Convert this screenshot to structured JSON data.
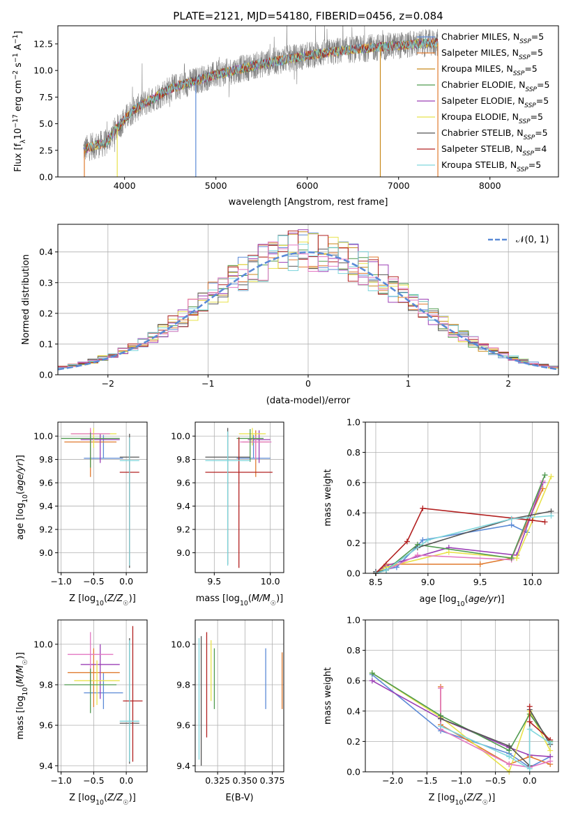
{
  "chart_data": [
    {
      "type": "line",
      "title": "PLATE=2121, MJD=54180, FIBERID=0456, z=0.084",
      "xlabel": "wavelength [Angstrom, rest frame]",
      "ylabel": "Flux [f_λ 10⁻¹⁷ erg cm⁻² s⁻¹ A⁻¹]",
      "xlim": [
        3270,
        8750
      ],
      "ylim": [
        0,
        14.2
      ],
      "xticks": [
        4000,
        5000,
        6000,
        7000,
        8000
      ],
      "yticks": [
        0.0,
        2.5,
        5.0,
        7.5,
        10.0,
        12.5
      ],
      "grid": false,
      "legend_position": "top-right",
      "series": [
        {
          "name": "Chabrier MILES, N_SSP=5",
          "color": "#5b8ad6"
        },
        {
          "name": "Salpeter MILES, N_SSP=5",
          "color": "#e07a2e"
        },
        {
          "name": "Kroupa MILES, N_SSP=5",
          "color": "#c8891b"
        },
        {
          "name": "Chabrier ELODIE, N_SSP=5",
          "color": "#4f9a4f"
        },
        {
          "name": "Salpeter ELODIE, N_SSP=5",
          "color": "#9b3fb5"
        },
        {
          "name": "Kroupa ELODIE, N_SSP=5",
          "color": "#e8e24a"
        },
        {
          "name": "Chabrier STELIB, N_SSP=5",
          "color": "#555555"
        },
        {
          "name": "Salpeter STELIB, N_SSP=4",
          "color": "#b22020"
        },
        {
          "name": "Kroupa STELIB, N_SSP=5",
          "color": "#7fd6dc"
        }
      ],
      "data_series_color": "#808080",
      "continuum": [
        [
          3550,
          2.6
        ],
        [
          3700,
          3.0
        ],
        [
          3800,
          3.2
        ],
        [
          3900,
          4.4
        ],
        [
          4000,
          5.4
        ],
        [
          4100,
          6.3
        ],
        [
          4300,
          7.3
        ],
        [
          4500,
          8.3
        ],
        [
          4800,
          9.1
        ],
        [
          5000,
          9.6
        ],
        [
          5300,
          10.2
        ],
        [
          5600,
          10.8
        ],
        [
          6000,
          11.4
        ],
        [
          6400,
          11.9
        ],
        [
          6800,
          12.2
        ],
        [
          7200,
          12.5
        ],
        [
          7430,
          12.6
        ]
      ]
    },
    {
      "type": "line",
      "xlabel": "(data-model)/error",
      "ylabel": "Normed distribution",
      "xlim": [
        -2.5,
        2.5
      ],
      "ylim": [
        0,
        0.49
      ],
      "xticks": [
        -2,
        -1,
        0,
        1,
        2
      ],
      "yticks": [
        0.0,
        0.1,
        0.2,
        0.3,
        0.4
      ],
      "grid": true,
      "legend_position": "top-right",
      "legend": [
        "𝒩(0, 1)"
      ],
      "gauss_color": "#5b8ad6"
    },
    {
      "type": "scatter",
      "xlabel": "Z [log₁₀(Z/Z☉)]",
      "ylabel": "age  [log₁₀(age/yr)]",
      "xlim": [
        -1.05,
        0.32
      ],
      "ylim": [
        8.83,
        10.12
      ],
      "xticks": [
        -1.0,
        -0.5,
        0.0
      ],
      "yticks": [
        9.0,
        9.2,
        9.4,
        9.6,
        9.8,
        10.0
      ],
      "grid": true,
      "points": [
        {
          "x": -0.35,
          "y": 9.81,
          "xerr": 0.3,
          "yerr": [
            0.0,
            0.2
          ],
          "color": "#5b8ad6"
        },
        {
          "x": -0.55,
          "y": 9.95,
          "xerr": 0.4,
          "yerr": [
            0.3,
            0.1
          ],
          "color": "#e07a2e"
        },
        {
          "x": -0.4,
          "y": 9.97,
          "xerr": 0.3,
          "yerr": [
            0.2,
            0.05
          ],
          "color": "#9b3fb5"
        },
        {
          "x": -0.5,
          "y": 10.02,
          "xerr": 0.35,
          "yerr": [
            0.12,
            0.05
          ],
          "color": "#e8e24a"
        },
        {
          "x": -0.55,
          "y": 10.02,
          "xerr": 0.3,
          "yerr": [
            0.2,
            0.05
          ],
          "color": "#e377c2"
        },
        {
          "x": -0.55,
          "y": 9.98,
          "xerr": 0.45,
          "yerr": [
            0.25,
            0.05
          ],
          "color": "#4f9a4f"
        },
        {
          "x": 0.05,
          "y": 9.82,
          "xerr": 0.15,
          "yerr": [
            0.95,
            0.2
          ],
          "color": "#555555"
        },
        {
          "x": 0.05,
          "y": 9.69,
          "xerr": 0.15,
          "yerr": [
            0.8,
            0.3
          ],
          "color": "#b22020"
        },
        {
          "x": 0.05,
          "y": 9.79,
          "xerr": 0.15,
          "yerr": [
            0.9,
            0.2
          ],
          "color": "#7fd6dc"
        }
      ]
    },
    {
      "type": "scatter",
      "xlabel": "mass [log₁₀(M/M☉)]",
      "xlim": [
        9.33,
        10.12
      ],
      "ylim": [
        8.83,
        10.12
      ],
      "xticks": [
        9.5,
        10.0
      ],
      "yticks": [
        9.0,
        9.2,
        9.4,
        9.6,
        9.8,
        10.0
      ],
      "grid": true,
      "points": [
        {
          "x": 9.85,
          "y": 9.81,
          "xerr": 0.15,
          "yerr": [
            0.0,
            0.2
          ],
          "color": "#5b8ad6"
        },
        {
          "x": 9.87,
          "y": 9.95,
          "xerr": 0.12,
          "yerr": [
            0.3,
            0.1
          ],
          "color": "#e07a2e"
        },
        {
          "x": 9.9,
          "y": 9.97,
          "xerr": 0.1,
          "yerr": [
            0.2,
            0.08
          ],
          "color": "#9b3fb5"
        },
        {
          "x": 9.84,
          "y": 10.02,
          "xerr": 0.12,
          "yerr": [
            0.1,
            0.05
          ],
          "color": "#e8e24a"
        },
        {
          "x": 9.87,
          "y": 9.95,
          "xerr": 0.14,
          "yerr": [
            0.15,
            0.05
          ],
          "color": "#e377c2"
        },
        {
          "x": 9.82,
          "y": 9.98,
          "xerr": 0.12,
          "yerr": [
            0.2,
            0.08
          ],
          "color": "#4f9a4f"
        },
        {
          "x": 9.62,
          "y": 9.82,
          "xerr": 0.2,
          "yerr": [
            0.92,
            0.25
          ],
          "color": "#555555"
        },
        {
          "x": 9.72,
          "y": 9.69,
          "xerr": 0.3,
          "yerr": [
            0.82,
            0.3
          ],
          "color": "#b22020"
        },
        {
          "x": 9.62,
          "y": 9.79,
          "xerr": 0.2,
          "yerr": [
            0.9,
            0.25
          ],
          "color": "#7fd6dc"
        }
      ]
    },
    {
      "type": "line",
      "xlabel": "age  [log₁₀(age/yr)]",
      "ylabel": "mass weight",
      "xlim": [
        8.4,
        10.25
      ],
      "ylim": [
        0,
        1.0
      ],
      "xticks": [
        8.5,
        9.0,
        9.5,
        10.0
      ],
      "yticks": [
        0.0,
        0.2,
        0.4,
        0.6,
        0.8,
        1.0
      ],
      "grid": true,
      "series": [
        {
          "color": "#5b8ad6",
          "x": [
            8.5,
            8.7,
            8.95,
            9.8,
            9.95
          ],
          "y": [
            0.01,
            0.04,
            0.22,
            0.32,
            0.27
          ]
        },
        {
          "color": "#e07a2e",
          "x": [
            8.5,
            8.6,
            9.5,
            9.8,
            10.1
          ],
          "y": [
            0.0,
            0.06,
            0.06,
            0.1,
            0.56
          ]
        },
        {
          "color": "#9b3fb5",
          "x": [
            8.5,
            8.6,
            9.2,
            9.85,
            10.1
          ],
          "y": [
            0.0,
            0.05,
            0.17,
            0.12,
            0.6
          ]
        },
        {
          "color": "#e8e24a",
          "x": [
            8.5,
            8.6,
            9.2,
            9.85,
            10.18
          ],
          "y": [
            0.0,
            0.04,
            0.14,
            0.1,
            0.64
          ]
        },
        {
          "color": "#e377c2",
          "x": [
            8.5,
            8.6,
            8.9,
            9.8,
            10.1
          ],
          "y": [
            0.0,
            0.02,
            0.12,
            0.09,
            0.61
          ]
        },
        {
          "color": "#4f9a4f",
          "x": [
            8.5,
            8.6,
            8.9,
            9.8,
            10.12
          ],
          "y": [
            0.0,
            0.02,
            0.19,
            0.1,
            0.65
          ]
        },
        {
          "color": "#555555",
          "x": [
            8.5,
            8.6,
            8.9,
            9.8,
            10.18
          ],
          "y": [
            0.01,
            0.02,
            0.17,
            0.36,
            0.41
          ]
        },
        {
          "color": "#b22020",
          "x": [
            8.5,
            8.8,
            8.95,
            10.0,
            10.12
          ],
          "y": [
            0.0,
            0.21,
            0.43,
            0.35,
            0.34
          ]
        },
        {
          "color": "#7fd6dc",
          "x": [
            8.5,
            8.6,
            9.0,
            9.8,
            10.18
          ],
          "y": [
            0.0,
            0.02,
            0.22,
            0.36,
            0.38
          ]
        }
      ]
    },
    {
      "type": "scatter",
      "xlabel": "Z [log₁₀(Z/Z☉)]",
      "ylabel": "mass [log₁₀(M/M☉)]",
      "xlim": [
        -1.05,
        0.32
      ],
      "ylim": [
        9.37,
        10.12
      ],
      "xticks": [
        -1.0,
        -0.5,
        0.0
      ],
      "yticks": [
        9.4,
        9.6,
        9.8,
        10.0
      ],
      "grid": true,
      "points": [
        {
          "x": -0.35,
          "y": 9.76,
          "xerr": 0.3,
          "yerr": [
            0.08,
            0.1
          ],
          "color": "#5b8ad6"
        },
        {
          "x": -0.5,
          "y": 9.86,
          "xerr": 0.4,
          "yerr": [
            0.17,
            0.12
          ],
          "color": "#e07a2e"
        },
        {
          "x": -0.4,
          "y": 9.9,
          "xerr": 0.3,
          "yerr": [
            0.17,
            0.1
          ],
          "color": "#9b3fb5"
        },
        {
          "x": -0.45,
          "y": 9.82,
          "xerr": 0.35,
          "yerr": [
            0.12,
            0.1
          ],
          "color": "#e8e24a"
        },
        {
          "x": -0.55,
          "y": 9.95,
          "xerr": 0.35,
          "yerr": [
            0.15,
            0.11
          ],
          "color": "#e377c2"
        },
        {
          "x": -0.55,
          "y": 9.8,
          "xerr": 0.4,
          "yerr": [
            0.14,
            0.08
          ],
          "color": "#4f9a4f"
        },
        {
          "x": 0.05,
          "y": 9.61,
          "xerr": 0.15,
          "yerr": [
            0.2,
            0.42
          ],
          "color": "#555555"
        },
        {
          "x": 0.1,
          "y": 9.72,
          "xerr": 0.15,
          "yerr": [
            0.3,
            0.37
          ],
          "color": "#b22020"
        },
        {
          "x": 0.05,
          "y": 9.62,
          "xerr": 0.15,
          "yerr": [
            0.2,
            0.4
          ],
          "color": "#7fd6dc"
        }
      ]
    },
    {
      "type": "scatter",
      "xlabel": "E(B-V)",
      "xlim": [
        0.3045,
        0.3855
      ],
      "ylim": [
        9.37,
        10.12
      ],
      "xticks": [
        0.325,
        0.35,
        0.375
      ],
      "xticklabels": [
        "0.325",
        "0.350",
        "0.375"
      ],
      "yticks": [
        9.4,
        9.6,
        9.8,
        10.0
      ],
      "grid": true,
      "points": [
        {
          "x": 0.308,
          "y": 9.73,
          "yerr": [
            0.3,
            0.3
          ],
          "color": "#7fd6dc"
        },
        {
          "x": 0.31,
          "y": 9.72,
          "yerr": [
            0.32,
            0.32
          ],
          "color": "#555555"
        },
        {
          "x": 0.315,
          "y": 9.8,
          "yerr": [
            0.26,
            0.26
          ],
          "color": "#b22020"
        },
        {
          "x": 0.319,
          "y": 9.87,
          "yerr": [
            0.15,
            0.15
          ],
          "color": "#e8e24a"
        },
        {
          "x": 0.322,
          "y": 9.83,
          "yerr": [
            0.15,
            0.15
          ],
          "color": "#4f9a4f"
        },
        {
          "x": 0.369,
          "y": 9.83,
          "yerr": [
            0.15,
            0.15
          ],
          "color": "#5b8ad6"
        },
        {
          "x": 0.384,
          "y": 9.82,
          "yerr": [
            0.14,
            0.14
          ],
          "color": "#e07a2e"
        }
      ]
    },
    {
      "type": "line",
      "xlabel": "Z [log₁₀(Z/Z☉)]",
      "ylabel": "mass weight",
      "xlim": [
        -2.4,
        0.42
      ],
      "ylim": [
        0,
        1.0
      ],
      "xticks": [
        -2.0,
        -1.5,
        -1.0,
        -0.5,
        0.0
      ],
      "yticks": [
        0.0,
        0.2,
        0.4,
        0.6,
        0.8,
        1.0
      ],
      "grid": true,
      "series": [
        {
          "color": "#5b8ad6",
          "x": [
            -2.3,
            -1.3,
            -0.3,
            0.0,
            0.3
          ],
          "y": [
            0.64,
            0.27,
            0.12,
            0.03,
            0.1
          ]
        },
        {
          "color": "#e07a2e",
          "x": [
            -1.3,
            -1.3,
            -0.3,
            0.0,
            0.3
          ],
          "y": [
            0.56,
            0.31,
            0.05,
            0.1,
            0.05
          ]
        },
        {
          "color": "#9b3fb5",
          "x": [
            -2.3,
            -1.3,
            -0.3,
            0.0,
            0.3
          ],
          "y": [
            0.6,
            0.35,
            0.16,
            0.11,
            0.1
          ]
        },
        {
          "color": "#e8e24a",
          "x": [
            -2.3,
            -1.3,
            -0.3,
            0.0,
            0.3
          ],
          "y": [
            0.65,
            0.36,
            0.0,
            0.4,
            0.14
          ]
        },
        {
          "color": "#e377c2",
          "x": [
            -1.3,
            -1.3,
            -0.3,
            0.0,
            0.3
          ],
          "y": [
            0.55,
            0.28,
            0.05,
            0.03,
            0.07
          ]
        },
        {
          "color": "#4f9a4f",
          "x": [
            -2.3,
            -1.3,
            -0.3,
            0.0,
            0.3
          ],
          "y": [
            0.65,
            0.37,
            0.14,
            0.38,
            0.2
          ]
        },
        {
          "color": "#555555",
          "x": [
            -1.3,
            -0.3,
            0.0,
            0.0,
            0.3
          ],
          "y": [
            0.35,
            0.17,
            0.04,
            0.41,
            0.18
          ]
        },
        {
          "color": "#b22020",
          "x": [
            0.0,
            0.0,
            0.3
          ],
          "y": [
            0.43,
            0.33,
            0.21
          ]
        },
        {
          "color": "#7fd6dc",
          "x": [
            -1.3,
            -0.3,
            0.0,
            0.0,
            0.3
          ],
          "y": [
            0.3,
            0.1,
            0.02,
            0.28,
            0.19
          ]
        }
      ]
    }
  ]
}
